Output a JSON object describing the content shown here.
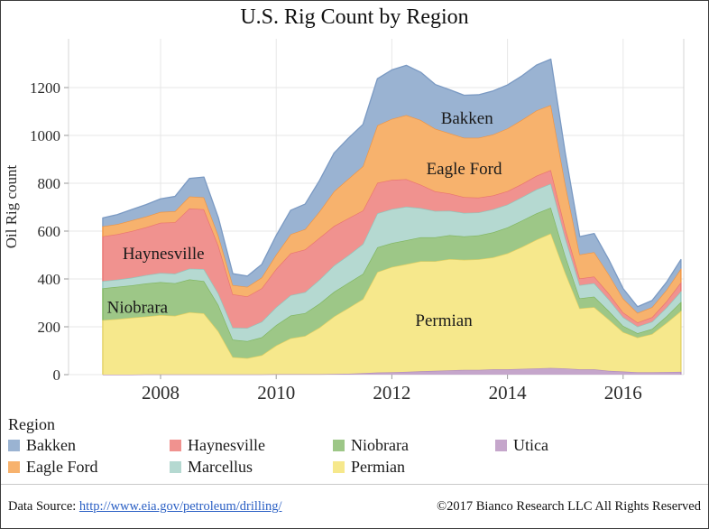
{
  "title": "U.S. Rig Count by Region",
  "y_axis": {
    "label": "Oil Rig count"
  },
  "legend": {
    "title": "Region",
    "items": [
      {
        "label": "Bakken"
      },
      {
        "label": "Haynesville"
      },
      {
        "label": "Niobrara"
      },
      {
        "label": "Utica"
      },
      {
        "label": "Eagle Ford"
      },
      {
        "label": "Marcellus"
      },
      {
        "label": "Permian"
      }
    ]
  },
  "footer": {
    "source_label": "Data Source:",
    "source_url": "http://www.eia.gov/petroleum/drilling/",
    "copyright": "©2017 Bianco Research LLC  All Rights Reserved"
  },
  "chart_data": {
    "type": "area",
    "stacked": true,
    "title": "U.S. Rig Count by Region",
    "xlabel": "",
    "ylabel": "Oil Rig count",
    "xlim": [
      2006.4,
      2017.05
    ],
    "ylim": [
      0,
      1340
    ],
    "grid": true,
    "legend_position": "bottom",
    "xticks": [
      2008,
      2010,
      2012,
      2014,
      2016
    ],
    "yticks": [
      0,
      200,
      400,
      600,
      800,
      1000,
      1200
    ],
    "x": [
      2007.0,
      2007.25,
      2007.5,
      2007.75,
      2008.0,
      2008.25,
      2008.5,
      2008.75,
      2009.0,
      2009.25,
      2009.5,
      2009.75,
      2010.0,
      2010.25,
      2010.5,
      2010.75,
      2011.0,
      2011.25,
      2011.5,
      2011.75,
      2012.0,
      2012.25,
      2012.5,
      2012.75,
      2013.0,
      2013.25,
      2013.5,
      2013.75,
      2014.0,
      2014.25,
      2014.5,
      2014.75,
      2015.0,
      2015.25,
      2015.5,
      2015.75,
      2016.0,
      2016.25,
      2016.5,
      2016.75,
      2017.0
    ],
    "stack_order_bottom_to_top": [
      "Utica",
      "Permian",
      "Niobrara",
      "Marcellus",
      "Haynesville",
      "Eagle Ford",
      "Bakken"
    ],
    "series": [
      {
        "name": "Utica",
        "fill": "#c5a6cb",
        "stroke": "#b18cbb",
        "values": [
          0,
          0,
          0,
          1,
          1,
          1,
          1,
          1,
          1,
          1,
          1,
          1,
          2,
          2,
          2,
          2,
          3,
          4,
          6,
          9,
          10,
          12,
          14,
          16,
          18,
          20,
          20,
          22,
          22,
          24,
          26,
          28,
          26,
          22,
          22,
          16,
          13,
          10,
          10,
          11,
          12
        ]
      },
      {
        "name": "Permian",
        "fill": "#f6e88c",
        "stroke": "#e2cf60",
        "values": [
          228,
          232,
          238,
          242,
          248,
          245,
          260,
          255,
          180,
          72,
          68,
          80,
          120,
          150,
          160,
          195,
          240,
          275,
          310,
          420,
          440,
          450,
          460,
          458,
          465,
          460,
          462,
          468,
          485,
          510,
          538,
          562,
          400,
          255,
          260,
          215,
          165,
          145,
          160,
          205,
          254
        ]
      },
      {
        "name": "Niobrara",
        "fill": "#9dc787",
        "stroke": "#7fb55e",
        "values": [
          133,
          135,
          135,
          138,
          138,
          136,
          137,
          135,
          110,
          73,
          71,
          75,
          85,
          95,
          95,
          100,
          103,
          105,
          105,
          103,
          100,
          100,
          100,
          100,
          100,
          98,
          100,
          105,
          108,
          110,
          110,
          108,
          70,
          42,
          44,
          36,
          26,
          18,
          21,
          28,
          38
        ]
      },
      {
        "name": "Marcellus",
        "fill": "#b5d9d1",
        "stroke": "#8ec6bc",
        "values": [
          30,
          30,
          32,
          35,
          38,
          40,
          45,
          50,
          48,
          50,
          55,
          65,
          75,
          85,
          88,
          100,
          110,
          115,
          125,
          142,
          142,
          140,
          122,
          110,
          102,
          98,
          96,
          96,
          96,
          98,
          100,
          100,
          75,
          55,
          56,
          48,
          36,
          28,
          30,
          36,
          44
        ]
      },
      {
        "name": "Haynesville",
        "fill": "#f0928f",
        "stroke": "#e9736f",
        "values": [
          187,
          190,
          195,
          200,
          210,
          215,
          252,
          250,
          200,
          140,
          132,
          140,
          160,
          175,
          178,
          175,
          165,
          155,
          140,
          128,
          122,
          115,
          98,
          82,
          72,
          66,
          62,
          58,
          56,
          55,
          57,
          57,
          40,
          28,
          28,
          25,
          20,
          17,
          19,
          26,
          38
        ]
      },
      {
        "name": "Eagle Ford",
        "fill": "#f7b26d",
        "stroke": "#f09340",
        "values": [
          42,
          42,
          45,
          45,
          45,
          46,
          50,
          50,
          42,
          38,
          40,
          45,
          60,
          80,
          85,
          110,
          145,
          165,
          185,
          240,
          255,
          268,
          270,
          262,
          252,
          248,
          250,
          255,
          262,
          268,
          273,
          272,
          185,
          100,
          102,
          80,
          58,
          40,
          42,
          48,
          57
        ]
      },
      {
        "name": "Bakken",
        "fill": "#9ab3d2",
        "stroke": "#7b9ac3",
        "values": [
          35,
          40,
          45,
          50,
          55,
          62,
          75,
          85,
          75,
          48,
          45,
          55,
          80,
          100,
          105,
          130,
          160,
          170,
          175,
          195,
          205,
          208,
          200,
          185,
          182,
          178,
          180,
          182,
          182,
          184,
          190,
          192,
          130,
          75,
          78,
          62,
          42,
          26,
          28,
          32,
          38
        ]
      }
    ],
    "annotations": [
      {
        "text": "Bakken",
        "x": 2013.3,
        "y": 1075
      },
      {
        "text": "Eagle Ford",
        "x": 2013.25,
        "y": 865
      },
      {
        "text": "Haynesville",
        "x": 2008.05,
        "y": 510
      },
      {
        "text": "Niobrara",
        "x": 2007.6,
        "y": 285
      },
      {
        "text": "Permian",
        "x": 2012.9,
        "y": 230
      }
    ]
  }
}
